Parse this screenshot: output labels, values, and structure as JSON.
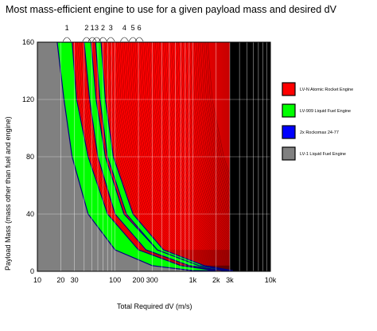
{
  "chart_data": {
    "type": "area",
    "title": "Most mass-efficient engine to use for a given payload mass and desired dV",
    "xlabel": "Total Required dV  (m/s)",
    "ylabel": "Payload Mass (mass other than fuel and engine)",
    "x_scale": "log",
    "xlim": [
      10,
      10000
    ],
    "ylim": [
      0,
      160
    ],
    "x_ticks": [
      "10",
      "20",
      "30",
      "100",
      "200",
      "300",
      "1k",
      "2k",
      "3k",
      "10k"
    ],
    "x_tick_values": [
      10,
      20,
      30,
      100,
      200,
      300,
      1000,
      2000,
      3000,
      10000
    ],
    "y_ticks": [
      "0",
      "40",
      "80",
      "120",
      "160"
    ],
    "y_tick_values": [
      0,
      40,
      80,
      120,
      160
    ],
    "grid": true,
    "legend_placement": "right",
    "legend": [
      {
        "name": "LV-N Atomic Rocket Engine",
        "color": "#ff0000"
      },
      {
        "name": "LV-909 Liquid Fuel Engine",
        "color": "#00ff00"
      },
      {
        "name": "2x Rockomax 24-77",
        "color": "#0000ff"
      },
      {
        "name": "LV-1 Liquid Fuel Engine",
        "color": "#808080"
      }
    ],
    "background_color": "#808080",
    "high_dv_color": "#000000",
    "top_labels": [
      {
        "text": "1",
        "x": 24
      },
      {
        "text": "2",
        "x": 43
      },
      {
        "text": "1",
        "x": 51
      },
      {
        "text": "3",
        "x": 58
      },
      {
        "text": "2",
        "x": 70
      },
      {
        "text": "3",
        "x": 88
      },
      {
        "text": "4",
        "x": 132
      },
      {
        "text": "5",
        "x": 170
      },
      {
        "text": "6",
        "x": 205
      }
    ],
    "boundary_color": "#000080",
    "boundaries": [
      {
        "name": "LV-909 region 1",
        "left": [
          {
            "x": 18,
            "y": 160
          },
          {
            "x": 22,
            "y": 120
          },
          {
            "x": 28,
            "y": 80
          },
          {
            "x": 45,
            "y": 40
          },
          {
            "x": 100,
            "y": 15
          },
          {
            "x": 300,
            "y": 4
          },
          {
            "x": 1000,
            "y": 0.5
          }
        ],
        "right": [
          {
            "x": 28,
            "y": 160
          },
          {
            "x": 32,
            "y": 120
          },
          {
            "x": 45,
            "y": 80
          },
          {
            "x": 80,
            "y": 40
          },
          {
            "x": 200,
            "y": 15
          },
          {
            "x": 700,
            "y": 4
          },
          {
            "x": 2000,
            "y": 0.5
          }
        ]
      },
      {
        "name": "LV-909 region 2",
        "left": [
          {
            "x": 40,
            "y": 160
          },
          {
            "x": 47,
            "y": 120
          },
          {
            "x": 60,
            "y": 80
          },
          {
            "x": 100,
            "y": 40
          },
          {
            "x": 250,
            "y": 15
          },
          {
            "x": 900,
            "y": 4
          },
          {
            "x": 2500,
            "y": 0.5
          }
        ],
        "right": [
          {
            "x": 49,
            "y": 160
          },
          {
            "x": 57,
            "y": 120
          },
          {
            "x": 75,
            "y": 80
          },
          {
            "x": 130,
            "y": 40
          },
          {
            "x": 350,
            "y": 15
          },
          {
            "x": 1200,
            "y": 4
          },
          {
            "x": 3000,
            "y": 0.5
          }
        ]
      },
      {
        "name": "LV-909 region 3",
        "left": [
          {
            "x": 56,
            "y": 160
          },
          {
            "x": 64,
            "y": 120
          },
          {
            "x": 80,
            "y": 80
          },
          {
            "x": 140,
            "y": 40
          },
          {
            "x": 350,
            "y": 15
          },
          {
            "x": 1200,
            "y": 4
          },
          {
            "x": 3000,
            "y": 0.5
          }
        ],
        "right": [
          {
            "x": 66,
            "y": 160
          },
          {
            "x": 75,
            "y": 120
          },
          {
            "x": 95,
            "y": 80
          },
          {
            "x": 170,
            "y": 40
          },
          {
            "x": 420,
            "y": 15
          },
          {
            "x": 1400,
            "y": 4
          },
          {
            "x": 3300,
            "y": 0.5
          }
        ]
      }
    ]
  }
}
